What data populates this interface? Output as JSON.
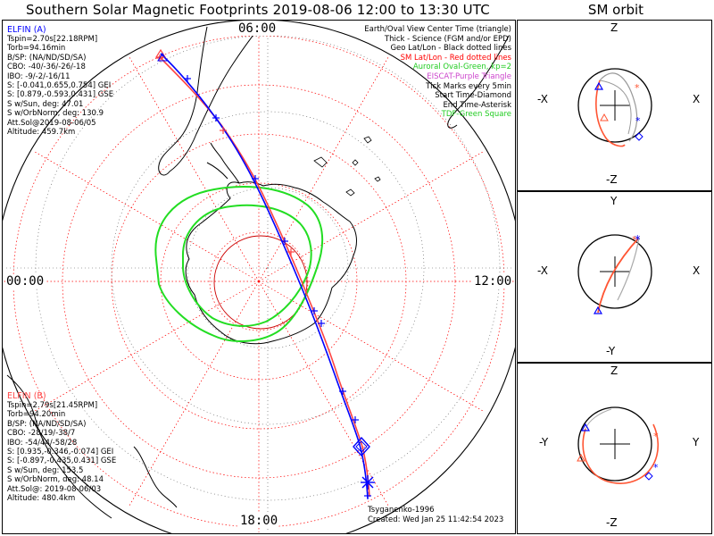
{
  "title": "Southern Solar Magnetic Footprints 2019-08-06 12:00 to 13:30 UTC",
  "sm_title": "SM orbit",
  "hour_labels": {
    "top": "06:00",
    "left": "00:00",
    "right": "12:00",
    "bottom": "18:00"
  },
  "legend": [
    {
      "text": "Earth/Oval View Center Time (triangle)",
      "color": "#000000"
    },
    {
      "text": "Thick - Science (FGM and/or EPD)",
      "color": "#000000"
    },
    {
      "text": "Geo Lat/Lon - Black dotted lines",
      "color": "#000000"
    },
    {
      "text": "SM Lat/Lon - Red dotted lines",
      "color": "#ff0000"
    },
    {
      "text": "Auroral Oval-Green, kp=2",
      "color": "#22cc22"
    },
    {
      "text": "EISCAT-Purple Triangle",
      "color": "#cc44cc"
    },
    {
      "text": "Tick Marks every 5min",
      "color": "#000000"
    },
    {
      "text": "Start Time-Diamond",
      "color": "#000000"
    },
    {
      "text": "End Time-Asterisk",
      "color": "#000000"
    },
    {
      "text": "TDF-Green Square",
      "color": "#22cc22"
    }
  ],
  "elfin_a": {
    "name": "ELFIN (A)",
    "color": "#0000ff",
    "lines": [
      "Tspin=2.70s[22.18RPM]",
      "Torb=94.16min",
      "B/SP: (NA/ND/SD/SA)",
      "CBO: -40/-36/-26/-18",
      "IBO: -9/-2/-16/11",
      "S: [-0.041,0.655,0.754] GEI",
      "S: [0.879,-0.593,0.431] GSE",
      "S w/Sun, deg: 47.01",
      "S w/OrbNorm, deg: 130.9",
      "Att.Sol@2019-08-06/05",
      "Altitude: 459.7km"
    ]
  },
  "elfin_b": {
    "name": "ELFIN (B)",
    "color": "#ff4444",
    "lines": [
      "Tspin=2.79s[21.45RPM]",
      "Torb=94.20min",
      "B/SP: (NA/ND/SD/SA)",
      "CBO: -28/19/-38/7",
      "IBO: -54/44/-58/28",
      "S: [0.935,-0.346,-0.074] GEI",
      "S: [-0.897,-0.435,0.431] GSE",
      "S w/Sun, deg: 153.5",
      "S w/OrbNorm, deg: 48.14",
      "Att.Sol@: 2019-08-06/03",
      "Altitude: 480.4km"
    ]
  },
  "credits": {
    "model": "Tsyganenko-1996",
    "created": "Created: Wed Jan 25 11:42:54 2023"
  },
  "orbit_panels": [
    {
      "top": "Z",
      "bottom": "-Z",
      "left": "-X",
      "right": "X"
    },
    {
      "top": "Y",
      "bottom": "-Y",
      "left": "-X",
      "right": "X"
    },
    {
      "top": "Z",
      "bottom": "-Z",
      "left": "-Y",
      "right": "Y"
    }
  ],
  "colors": {
    "elfin_a": "#0000ff",
    "elfin_b": "#ff4444",
    "oval": "#22dd22",
    "sm_grid": "#ff0000",
    "geo": "#000000"
  }
}
